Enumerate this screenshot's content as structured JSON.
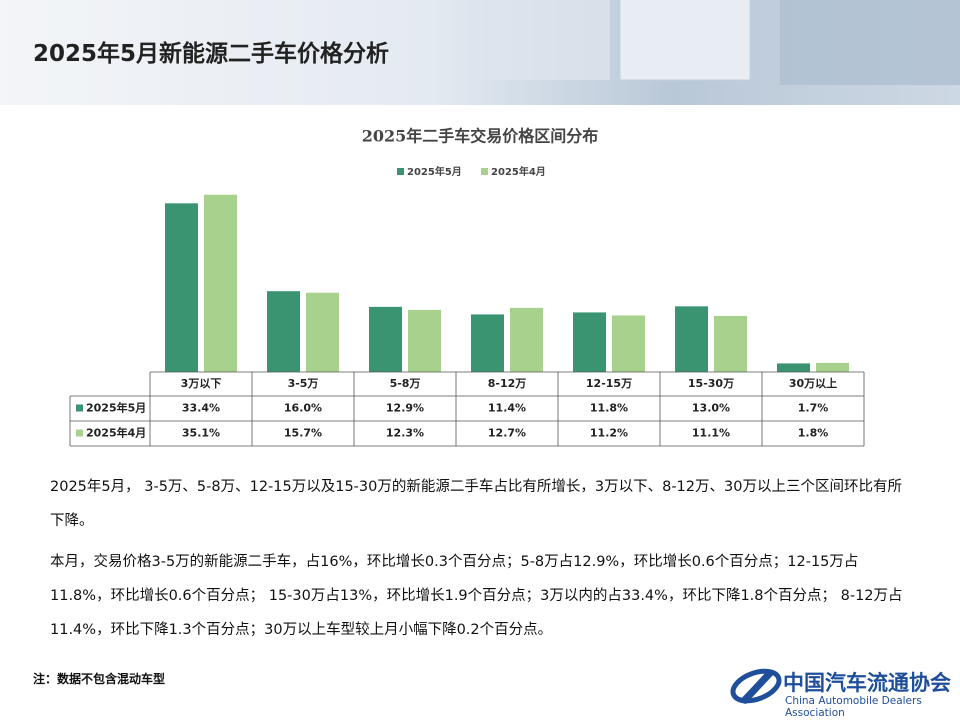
{
  "header": {
    "title": "2025年5月新能源二手车价格分析"
  },
  "chart_data": {
    "type": "bar",
    "title": "2025年二手车交易价格区间分布",
    "categories": [
      "3万以下",
      "3-5万",
      "5-8万",
      "8-12万",
      "12-15万",
      "15-30万",
      "30万以上"
    ],
    "series": [
      {
        "name": "2025年5月",
        "color": "#3a9472",
        "values": [
          33.4,
          16.0,
          12.9,
          11.4,
          11.8,
          13.0,
          1.7
        ],
        "value_labels": [
          "33.4%",
          "16.0%",
          "12.9%",
          "11.4%",
          "11.8%",
          "13.0%",
          "1.7%"
        ]
      },
      {
        "name": "2025年4月",
        "color": "#a9d18e",
        "values": [
          35.1,
          15.7,
          12.3,
          12.7,
          11.2,
          11.1,
          1.8
        ],
        "value_labels": [
          "35.1%",
          "15.7%",
          "12.3%",
          "12.7%",
          "11.2%",
          "11.1%",
          "1.8%"
        ]
      }
    ]
  },
  "paragraphs": [
    "2025年5月， 3-5万、5-8万、12-15万以及15-30万的新能源二手车占比有所增长，3万以下、8-12万、30万以上三个区间环比有所下降。",
    "本月，交易价格3-5万的新能源二手车，占16%，环比增长0.3个百分点；5-8万占12.9%，环比增长0.6个百分点；12-15万占11.8%，环比增长0.6个百分点； 15-30万占13%，环比增长1.9个百分点；3万以内的占33.4%，环比下降1.8个百分点； 8-12万占11.4%，环比下降1.3个百分点；30万以上车型较上月小幅下降0.2个百分点。"
  ],
  "note": "注：数据不包含混动车型",
  "logo": {
    "name_cn": "中国汽车流通协会",
    "name_en": "China Automobile Dealers Association"
  }
}
